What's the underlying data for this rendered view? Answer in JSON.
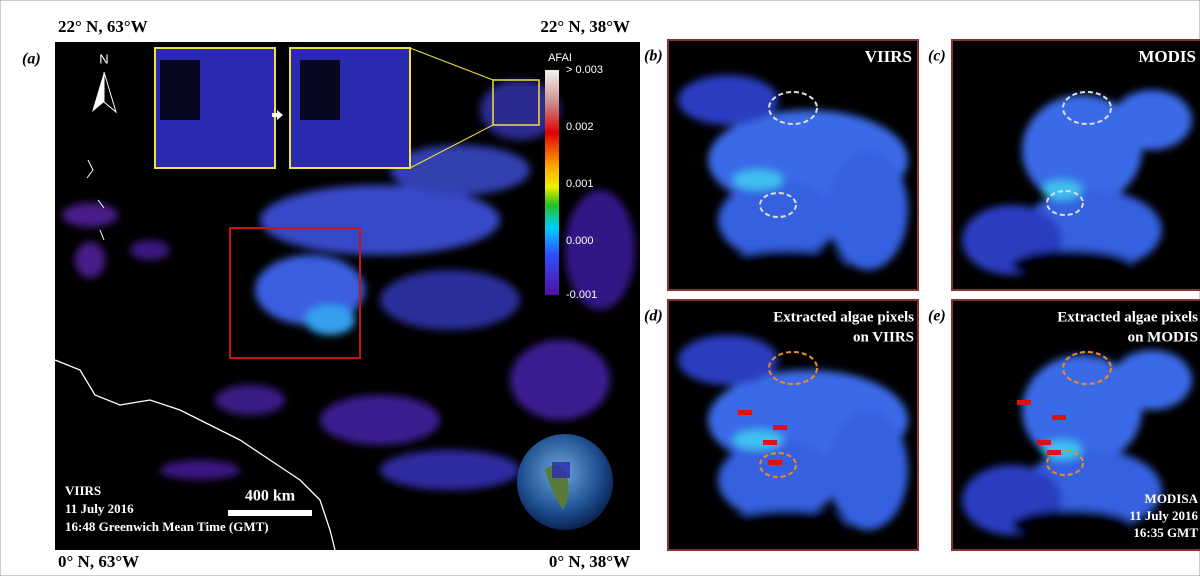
{
  "panel_a": {
    "label": "(a)",
    "corners": {
      "top_left": "22° N, 63°W",
      "top_right": "22° N, 38°W",
      "bottom_left": "0° N, 63°W",
      "bottom_right": "0° N, 38°W"
    },
    "north": "N",
    "colorbar": {
      "title": "AFAI",
      "labels": [
        "> 0.003",
        "0.002",
        "0.001",
        "0.000",
        "-0.001"
      ]
    },
    "scale_bar": "400 km",
    "caption": [
      "VIIRS",
      "11 July 2016",
      "16:48 Greenwich Mean Time (GMT)"
    ]
  },
  "panel_b": {
    "label": "(b)",
    "title": "VIIRS"
  },
  "panel_c": {
    "label": "(c)",
    "title": "MODIS"
  },
  "panel_d": {
    "label": "(d)",
    "title": [
      "Extracted algae pixels",
      "on VIIRS"
    ]
  },
  "panel_e": {
    "label": "(e)",
    "title": [
      "Extracted algae pixels",
      "on MODIS"
    ],
    "caption": [
      "MODISA",
      "11 July 2016",
      "16:35 GMT"
    ]
  }
}
